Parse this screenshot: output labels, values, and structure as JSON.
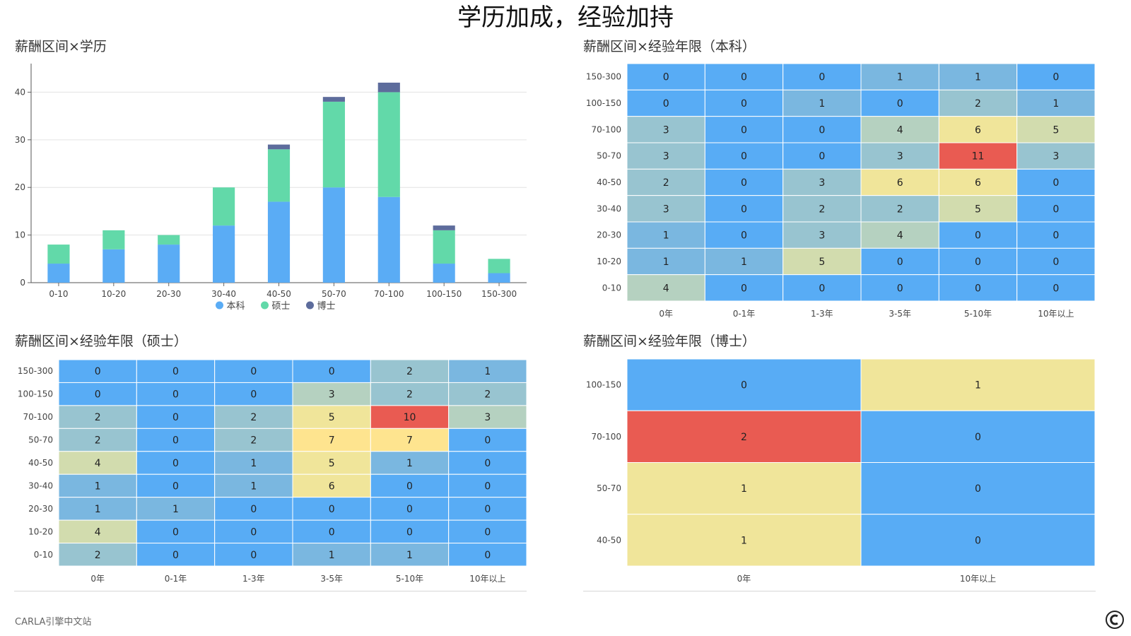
{
  "page": {
    "title": "学历加成，经验加持",
    "footer": "CARLA引擎中文站",
    "logo_text": "CARLA"
  },
  "colors": {
    "bachelor": "#5aacf5",
    "master": "#62d9a9",
    "phd": "#5d6c9c",
    "heat_scale": [
      "#58acf5",
      "#7ab7e0",
      "#98c4d0",
      "#b5d1c0",
      "#d2dcae",
      "#f0e59a",
      "#fee48f",
      "#fdd58a",
      "#f8b27a",
      "#e95b52"
    ]
  },
  "chart_data": [
    {
      "type": "bar",
      "stacked": true,
      "title": "薪酬区间×学历",
      "categories": [
        "0-10",
        "10-20",
        "20-30",
        "30-40",
        "40-50",
        "50-70",
        "70-100",
        "100-150",
        "150-300"
      ],
      "series": [
        {
          "name": "本科",
          "values": [
            4,
            7,
            8,
            12,
            17,
            20,
            18,
            4,
            2
          ]
        },
        {
          "name": "硕士",
          "values": [
            4,
            4,
            2,
            8,
            11,
            18,
            22,
            7,
            3
          ]
        },
        {
          "name": "博士",
          "values": [
            0,
            0,
            0,
            0,
            1,
            1,
            2,
            1,
            0
          ]
        }
      ],
      "yticks": [
        0,
        10,
        20,
        30,
        40
      ],
      "ylim": [
        0,
        46
      ],
      "grid": true,
      "legend": "bottom-center"
    },
    {
      "type": "heatmap",
      "title": "薪酬区间×经验年限（本科）",
      "x_categories": [
        "0年",
        "0-1年",
        "1-3年",
        "3-5年",
        "5-10年",
        "10年以上"
      ],
      "y_categories": [
        "150-300",
        "100-150",
        "70-100",
        "50-70",
        "40-50",
        "30-40",
        "20-30",
        "10-20",
        "0-10"
      ],
      "values": [
        [
          0,
          0,
          0,
          1,
          1,
          0
        ],
        [
          0,
          0,
          1,
          0,
          2,
          1
        ],
        [
          3,
          0,
          0,
          4,
          6,
          5
        ],
        [
          3,
          0,
          0,
          3,
          11,
          3
        ],
        [
          2,
          0,
          3,
          6,
          6,
          0
        ],
        [
          3,
          0,
          2,
          2,
          5,
          0
        ],
        [
          1,
          0,
          3,
          4,
          0,
          0
        ],
        [
          1,
          1,
          5,
          0,
          0,
          0
        ],
        [
          4,
          0,
          0,
          0,
          0,
          0
        ]
      ],
      "max": 11
    },
    {
      "type": "heatmap",
      "title": "薪酬区间×经验年限（硕士）",
      "x_categories": [
        "0年",
        "0-1年",
        "1-3年",
        "3-5年",
        "5-10年",
        "10年以上"
      ],
      "y_categories": [
        "150-300",
        "100-150",
        "70-100",
        "50-70",
        "40-50",
        "30-40",
        "20-30",
        "10-20",
        "0-10"
      ],
      "values": [
        [
          0,
          0,
          0,
          0,
          2,
          1
        ],
        [
          0,
          0,
          0,
          3,
          2,
          2
        ],
        [
          2,
          0,
          2,
          5,
          10,
          3
        ],
        [
          2,
          0,
          2,
          7,
          7,
          0
        ],
        [
          4,
          0,
          1,
          5,
          1,
          0
        ],
        [
          1,
          0,
          1,
          6,
          0,
          0
        ],
        [
          1,
          1,
          0,
          0,
          0,
          0
        ],
        [
          4,
          0,
          0,
          0,
          0,
          0
        ],
        [
          2,
          0,
          0,
          1,
          1,
          0
        ]
      ],
      "max": 10
    },
    {
      "type": "heatmap",
      "title": "薪酬区间×经验年限（博士）",
      "x_categories": [
        "0年",
        "10年以上"
      ],
      "y_categories": [
        "100-150",
        "70-100",
        "50-70",
        "40-50"
      ],
      "values": [
        [
          0,
          1
        ],
        [
          2,
          0
        ],
        [
          1,
          0
        ],
        [
          1,
          0
        ]
      ],
      "max": 2
    }
  ]
}
